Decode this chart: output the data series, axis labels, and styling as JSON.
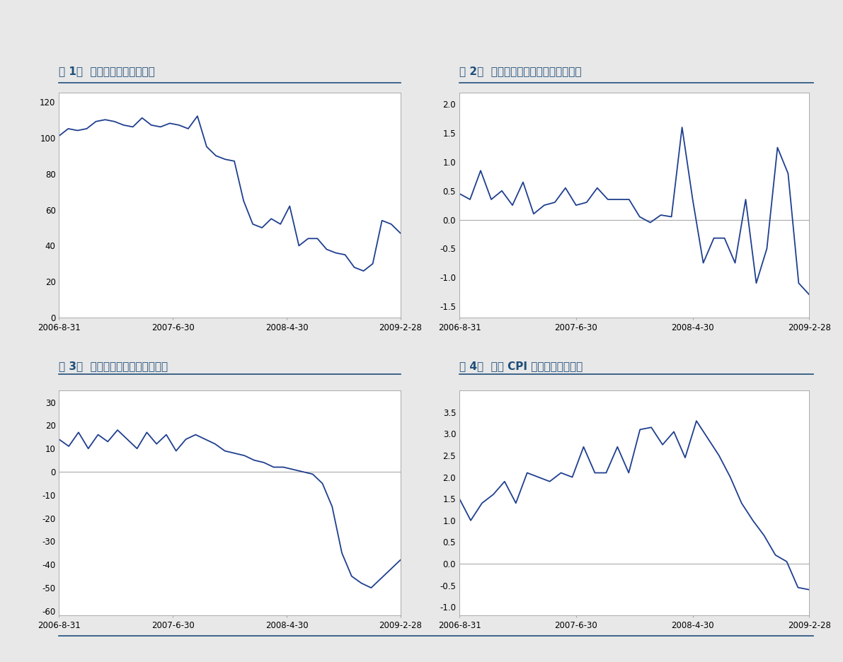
{
  "title_color": "#1F4E79",
  "line_color": "#1F3F8F",
  "bg_color": "#F0F0F0",
  "plot_bg_color": "#FFFFFF",
  "titles": [
    "图 1：  美国消费者信心或回升",
    "图 2：  美国个人收入月环比或小幅回升",
    "图 3：  日本商品贸易出口同比上升",
    "图 4：  德国 CPI 同比继续小幅下降"
  ],
  "chart1": {
    "x_labels": [
      "2006-8-31",
      "2007-6-30",
      "2008-4-30",
      "2009-2-28"
    ],
    "y_data": [
      101,
      105,
      104,
      105,
      109,
      110,
      109,
      107,
      106,
      111,
      107,
      106,
      108,
      107,
      105,
      112,
      95,
      90,
      88,
      87,
      65,
      52,
      50,
      55,
      52,
      62,
      40,
      44,
      44,
      38,
      36,
      35,
      28,
      26,
      30,
      54,
      52,
      47
    ],
    "ylim": [
      0,
      125
    ],
    "yticks": [
      0,
      20,
      40,
      60,
      80,
      100,
      120
    ],
    "zero_line": false
  },
  "chart2": {
    "x_labels": [
      "2006-8-31",
      "2007-6-30",
      "2008-4-30",
      "2009-2-28"
    ],
    "y_data": [
      0.45,
      0.35,
      0.85,
      0.35,
      0.5,
      0.25,
      0.65,
      0.1,
      0.25,
      0.3,
      0.55,
      0.25,
      0.3,
      0.55,
      0.35,
      0.35,
      0.35,
      0.05,
      -0.05,
      0.08,
      0.05,
      1.6,
      0.35,
      -0.75,
      -0.32,
      -0.32,
      -0.75,
      0.35,
      -1.1,
      -0.5,
      1.25,
      0.8,
      -1.1,
      -1.3
    ],
    "ylim": [
      -1.7,
      2.2
    ],
    "yticks": [
      -1.5,
      -1.0,
      -0.5,
      0.0,
      0.5,
      1.0,
      1.5,
      2.0
    ],
    "zero_line": true
  },
  "chart3": {
    "x_labels": [
      "2006-8-31",
      "2007-6-30",
      "2008-4-30",
      "2009-2-28"
    ],
    "y_data": [
      14,
      11,
      17,
      10,
      16,
      13,
      18,
      14,
      10,
      17,
      12,
      16,
      9,
      14,
      16,
      14,
      12,
      9,
      8,
      7,
      5,
      4,
      2,
      2,
      1,
      0,
      -1,
      -5,
      -15,
      -35,
      -45,
      -48,
      -50,
      -46,
      -42,
      -38
    ],
    "ylim": [
      -62,
      35
    ],
    "yticks": [
      -60,
      -50,
      -40,
      -30,
      -20,
      -10,
      0,
      10,
      20,
      30
    ],
    "zero_line": true
  },
  "chart4": {
    "x_labels": [
      "2006-8-31",
      "2007-6-30",
      "2008-4-30",
      "2009-2-28"
    ],
    "y_data": [
      1.5,
      1.0,
      1.4,
      1.6,
      1.9,
      1.4,
      2.1,
      2.0,
      1.9,
      2.1,
      2.0,
      2.7,
      2.1,
      2.1,
      2.7,
      2.1,
      3.1,
      3.15,
      2.75,
      3.05,
      2.45,
      3.3,
      2.9,
      2.5,
      2.0,
      1.4,
      1.0,
      0.65,
      0.2,
      0.05,
      -0.55,
      -0.6
    ],
    "ylim": [
      -1.2,
      4.0
    ],
    "yticks": [
      -1.0,
      -0.5,
      0.0,
      0.5,
      1.0,
      1.5,
      2.0,
      2.5,
      3.0,
      3.5
    ],
    "zero_line": true
  }
}
